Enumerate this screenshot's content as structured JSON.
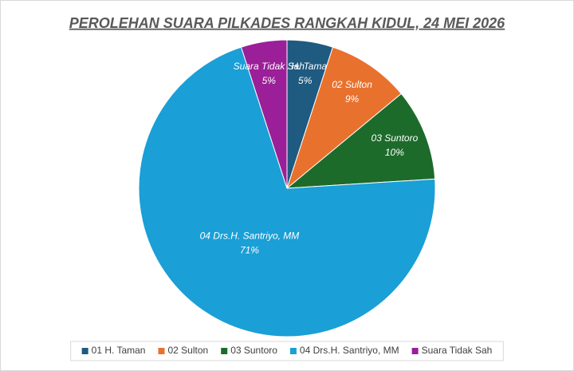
{
  "chart_data": {
    "type": "pie",
    "title": "PEROLEHAN SUARA PILKADES RANGKAH KIDUL, 24 MEI 2026",
    "categories": [
      "01 H. Taman",
      "02 Sulton",
      "03 Suntoro",
      "04 Drs.H. Santriyo, MM",
      "Suara Tidak Sah"
    ],
    "values": [
      5,
      9,
      10,
      71,
      5
    ],
    "value_labels": [
      "5%",
      "9%",
      "10%",
      "71%",
      "5%"
    ],
    "colors": [
      "#1f5a80",
      "#e8712e",
      "#1d6b2b",
      "#1a9fd6",
      "#9a1f98"
    ],
    "legend": "bottom"
  }
}
